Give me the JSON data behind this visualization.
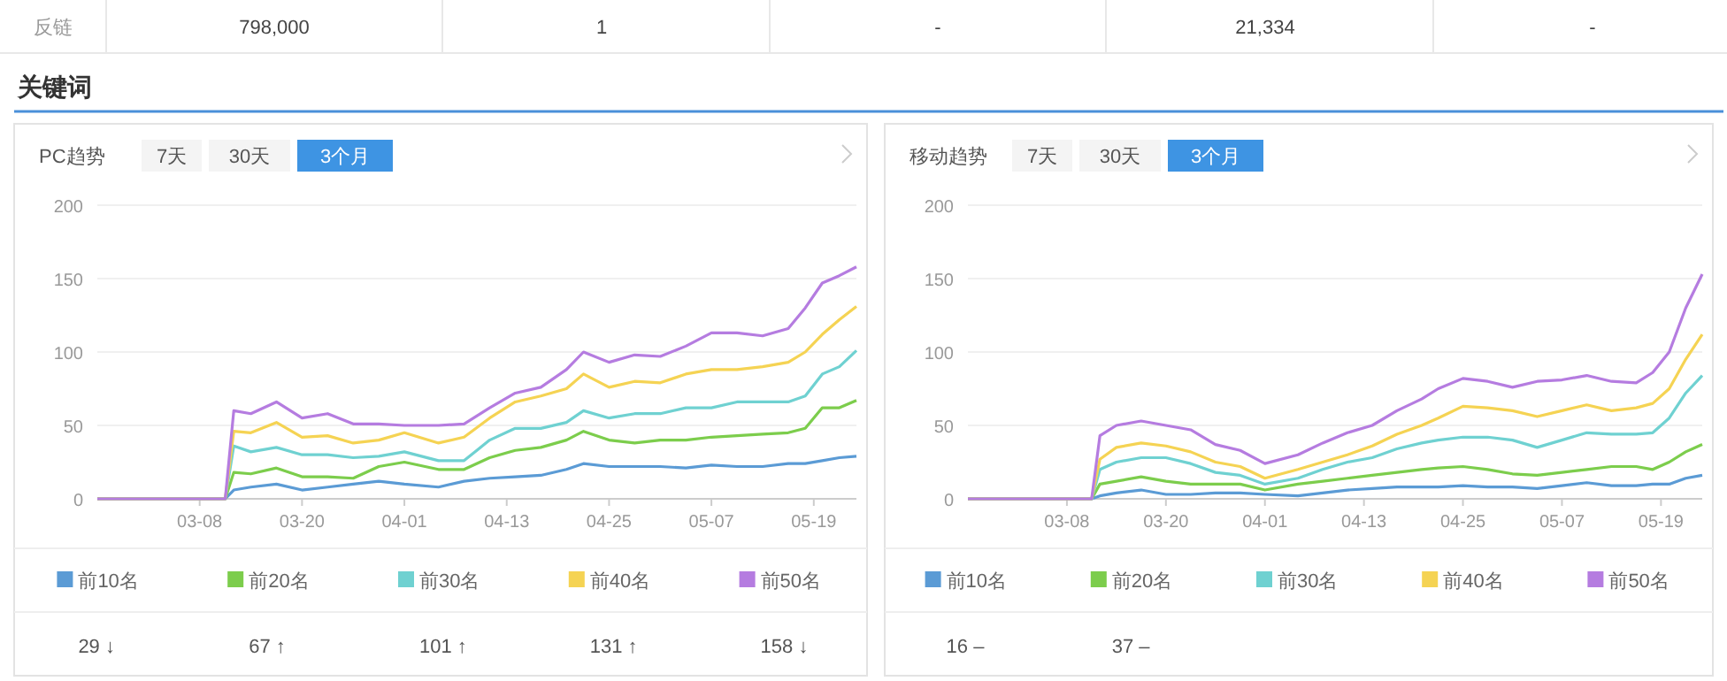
{
  "chart_data": [
    {
      "type": "other",
      "title": "关键词",
      "annotations": [
        "反链",
        "798,000",
        "1",
        "-",
        "21,334",
        "-"
      ]
    },
    {
      "type": "line",
      "title": "PC趋势",
      "annotations": [
        "7天",
        "30天",
        "3个月",
        "29 ↓",
        "67 ↑",
        "101 ↑",
        "131 ↑",
        "158 ↓"
      ],
      "x": [
        "--02-24",
        "--03-11",
        "--03-12",
        "--03-14",
        "--03-17",
        "--03-20",
        "--03-23",
        "--03-26",
        "--03-29",
        "--04-01",
        "--04-05",
        "--04-08",
        "--04-11",
        "--04-14",
        "--04-17",
        "--04-20",
        "--04-22",
        "--04-25",
        "--04-28",
        "--05-01",
        "--05-04",
        "--05-07",
        "--05-10",
        "--05-13",
        "--05-16",
        "--05-18",
        "--05-20",
        "--05-22",
        "--05-24"
      ],
      "xlim": [
        "--02-24",
        "--05-24"
      ],
      "xticks": [
        {
          "value": "--03-08",
          "label": "03-08"
        },
        {
          "value": "--03-20",
          "label": "03-20"
        },
        {
          "value": "--04-01",
          "label": "04-01"
        },
        {
          "value": "--04-13",
          "label": "04-13"
        },
        {
          "value": "--04-25",
          "label": "04-25"
        },
        {
          "value": "--05-07",
          "label": "05-07"
        },
        {
          "value": "--05-19",
          "label": "05-19"
        }
      ],
      "ylim": [
        0,
        200
      ],
      "yticks": [
        0,
        50,
        100,
        150,
        200
      ],
      "grid": "y",
      "legend": "bottom",
      "series": [
        {
          "name": "前10名",
          "color": "#5b9bd5",
          "values": [
            0,
            0,
            6,
            8,
            10,
            6,
            8,
            10,
            12,
            10,
            8,
            12,
            14,
            15,
            16,
            20,
            24,
            22,
            22,
            22,
            21,
            23,
            22,
            22,
            24,
            24,
            26,
            28,
            29
          ]
        },
        {
          "name": "前20名",
          "color": "#7ccd4c",
          "values": [
            0,
            0,
            18,
            17,
            21,
            15,
            15,
            14,
            22,
            25,
            20,
            20,
            28,
            33,
            35,
            40,
            46,
            40,
            38,
            40,
            40,
            42,
            43,
            44,
            45,
            48,
            62,
            62,
            67
          ]
        },
        {
          "name": "前30名",
          "color": "#6fd1d1",
          "values": [
            0,
            0,
            36,
            32,
            35,
            30,
            30,
            28,
            29,
            32,
            26,
            26,
            40,
            48,
            48,
            52,
            60,
            55,
            58,
            58,
            62,
            62,
            66,
            66,
            66,
            70,
            85,
            90,
            101
          ]
        },
        {
          "name": "前40名",
          "color": "#f5d353",
          "values": [
            0,
            0,
            46,
            45,
            52,
            42,
            43,
            38,
            40,
            45,
            38,
            42,
            55,
            66,
            70,
            75,
            85,
            76,
            80,
            79,
            85,
            88,
            88,
            90,
            93,
            100,
            112,
            122,
            131
          ]
        },
        {
          "name": "前50名",
          "color": "#b57ce0",
          "values": [
            0,
            0,
            60,
            58,
            66,
            55,
            58,
            51,
            51,
            50,
            50,
            51,
            62,
            72,
            76,
            88,
            100,
            93,
            98,
            97,
            104,
            113,
            113,
            111,
            116,
            130,
            147,
            152,
            158
          ]
        }
      ]
    },
    {
      "type": "line",
      "title": "移动趋势",
      "annotations": [
        "7天",
        "30天",
        "3个月",
        "16 –",
        "37 –"
      ],
      "x": [
        "--02-24",
        "--03-11",
        "--03-12",
        "--03-14",
        "--03-17",
        "--03-20",
        "--03-23",
        "--03-26",
        "--03-29",
        "--04-01",
        "--04-05",
        "--04-08",
        "--04-11",
        "--04-14",
        "--04-17",
        "--04-20",
        "--04-22",
        "--04-25",
        "--04-28",
        "--05-01",
        "--05-04",
        "--05-07",
        "--05-10",
        "--05-13",
        "--05-16",
        "--05-18",
        "--05-20",
        "--05-22",
        "--05-24"
      ],
      "xlim": [
        "--02-24",
        "--05-24"
      ],
      "xticks": [
        {
          "value": "--03-08",
          "label": "03-08"
        },
        {
          "value": "--03-20",
          "label": "03-20"
        },
        {
          "value": "--04-01",
          "label": "04-01"
        },
        {
          "value": "--04-13",
          "label": "04-13"
        },
        {
          "value": "--04-25",
          "label": "04-25"
        },
        {
          "value": "--05-07",
          "label": "05-07"
        },
        {
          "value": "--05-19",
          "label": "05-19"
        }
      ],
      "ylim": [
        0,
        200
      ],
      "yticks": [
        0,
        50,
        100,
        150,
        200
      ],
      "grid": "y",
      "legend": "bottom",
      "series": [
        {
          "name": "前10名",
          "color": "#5b9bd5",
          "values": [
            0,
            0,
            2,
            4,
            6,
            3,
            3,
            4,
            4,
            3,
            2,
            4,
            6,
            7,
            8,
            8,
            8,
            9,
            8,
            8,
            7,
            9,
            11,
            9,
            9,
            10,
            10,
            14,
            16
          ]
        },
        {
          "name": "前20名",
          "color": "#7ccd4c",
          "values": [
            0,
            0,
            10,
            12,
            15,
            12,
            10,
            10,
            10,
            6,
            10,
            12,
            14,
            16,
            18,
            20,
            21,
            22,
            20,
            17,
            16,
            18,
            20,
            22,
            22,
            20,
            25,
            32,
            37
          ]
        },
        {
          "name": "前30名",
          "color": "#6fd1d1",
          "values": [
            0,
            0,
            20,
            25,
            28,
            28,
            24,
            18,
            16,
            10,
            14,
            20,
            25,
            28,
            34,
            38,
            40,
            42,
            42,
            40,
            35,
            40,
            45,
            44,
            44,
            45,
            55,
            72,
            84
          ]
        },
        {
          "name": "前40名",
          "color": "#f5d353",
          "values": [
            0,
            0,
            27,
            35,
            38,
            36,
            32,
            25,
            22,
            14,
            20,
            25,
            30,
            36,
            44,
            50,
            55,
            63,
            62,
            60,
            56,
            60,
            64,
            60,
            62,
            65,
            75,
            95,
            112
          ]
        },
        {
          "name": "前50名",
          "color": "#b57ce0",
          "values": [
            0,
            0,
            43,
            50,
            53,
            50,
            47,
            37,
            33,
            24,
            30,
            38,
            45,
            50,
            60,
            68,
            75,
            82,
            80,
            76,
            80,
            81,
            84,
            80,
            79,
            86,
            100,
            130,
            153
          ]
        }
      ]
    }
  ]
}
